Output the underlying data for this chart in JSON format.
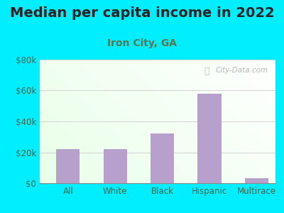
{
  "title": "Median per capita income in 2022",
  "subtitle": "Iron City, GA",
  "categories": [
    "All",
    "White",
    "Black",
    "Hispanic",
    "Multirace"
  ],
  "values": [
    22000,
    22000,
    32000,
    58000,
    3000
  ],
  "bar_color": "#b8a0cc",
  "background_outer": "#00eeff",
  "background_inner": "#e8f5e0",
  "title_color": "#222222",
  "subtitle_color": "#557755",
  "tick_color": "#446644",
  "ylim": [
    0,
    80000
  ],
  "yticks": [
    0,
    20000,
    40000,
    60000,
    80000
  ],
  "ytick_labels": [
    "$0",
    "$20k",
    "$40k",
    "$60k",
    "$80k"
  ],
  "title_fontsize": 14,
  "subtitle_fontsize": 10,
  "watermark": "City-Data.com"
}
